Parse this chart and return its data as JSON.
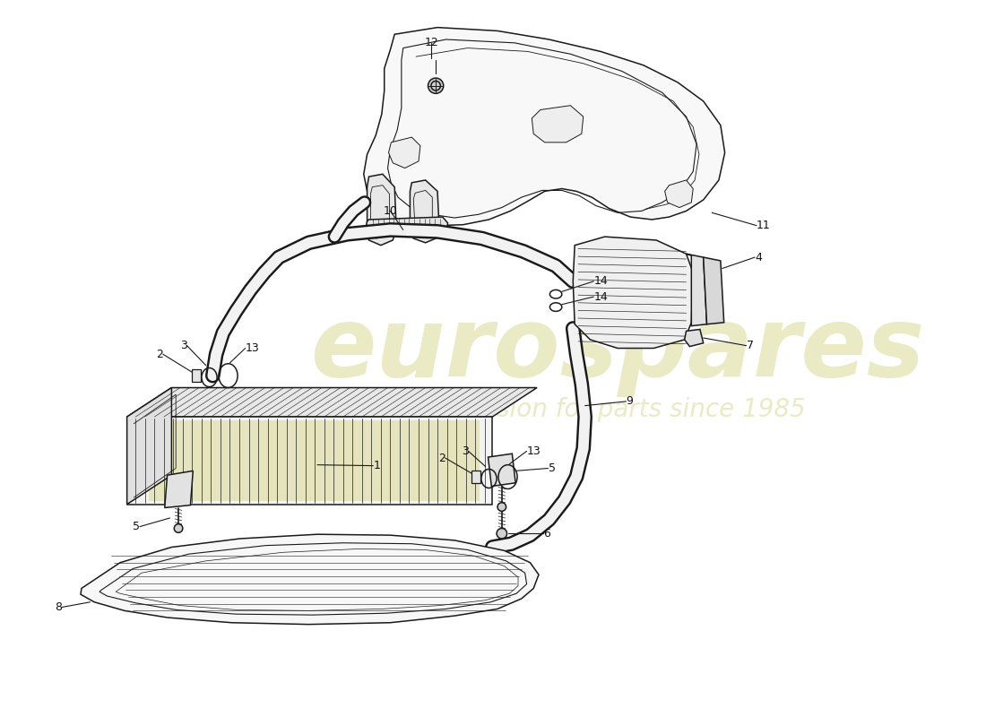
{
  "bg_color": "#ffffff",
  "line_color": "#1a1a1a",
  "wm1": "eurospares",
  "wm2": "a passion for parts since 1985",
  "wm_color": "#c8c864",
  "wm_alpha": 0.38,
  "lw": 1.1,
  "lw_hose": 10,
  "lw_thin": 0.6,
  "fs": 9
}
